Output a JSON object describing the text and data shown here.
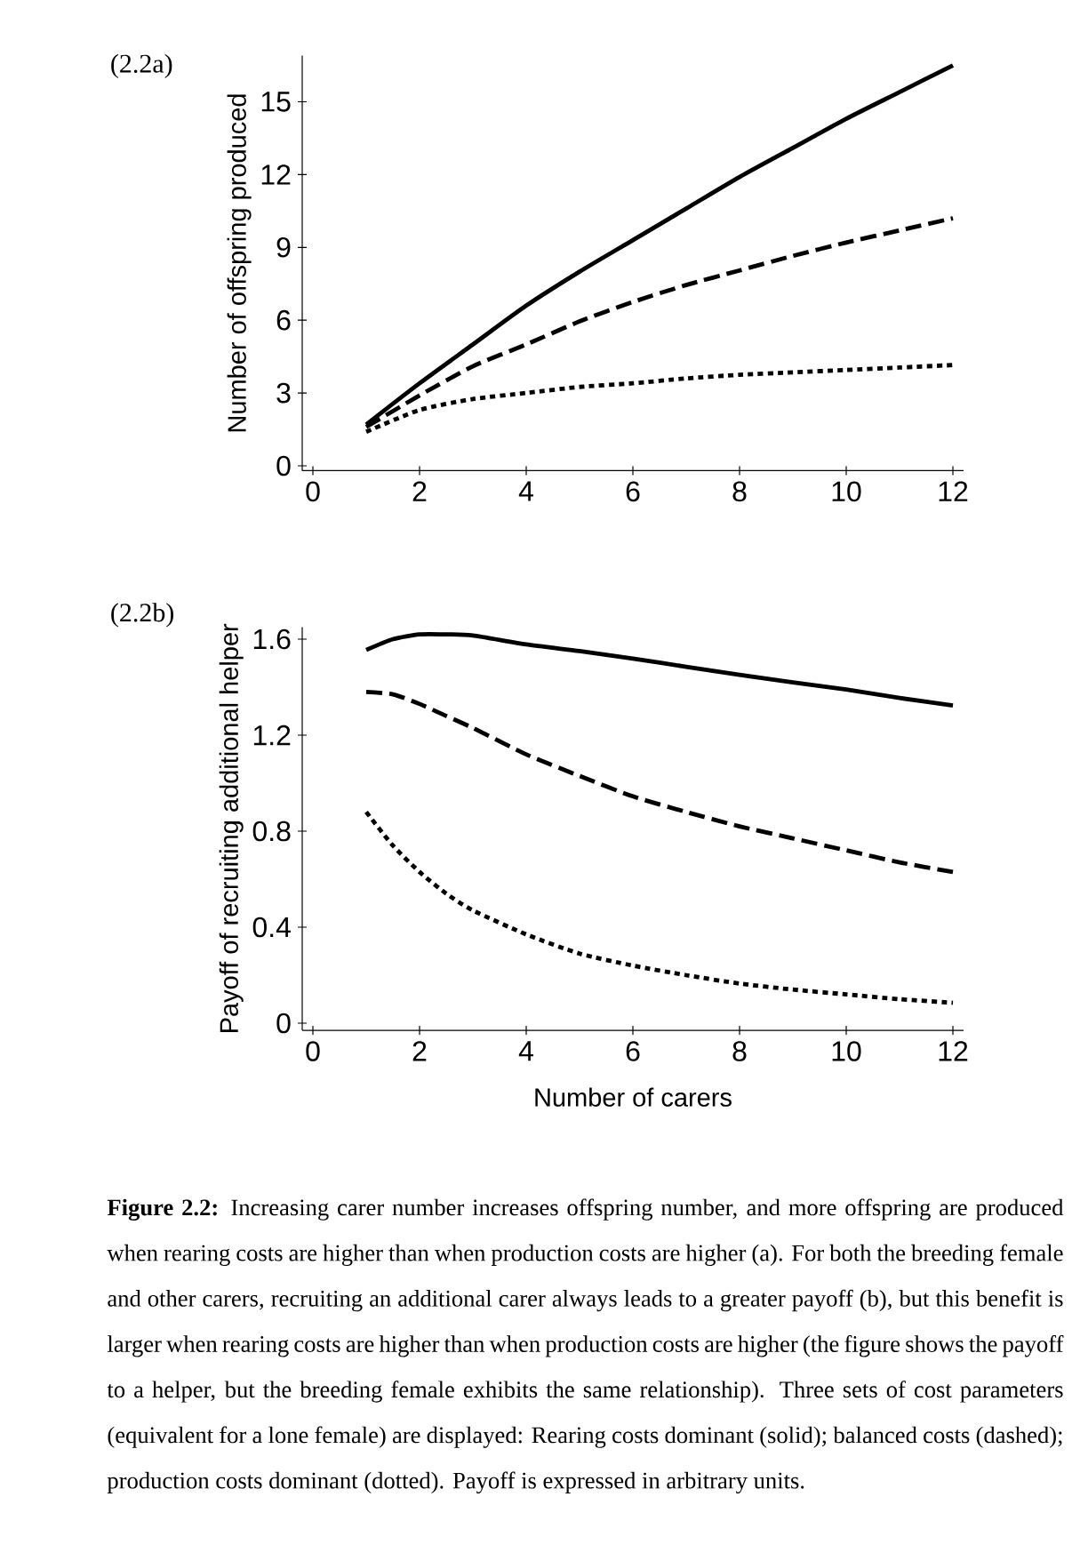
{
  "chart_data": [
    {
      "type": "line",
      "title": "(2.2a)",
      "ylabel": "Number of offspring produced",
      "x": [
        1,
        2,
        3,
        4,
        5,
        6,
        7,
        8,
        9,
        10,
        11,
        12
      ],
      "xlim": [
        -0.2,
        12.2
      ],
      "ylim": [
        -0.2,
        16.9
      ],
      "xticks": [
        0,
        2,
        4,
        6,
        8,
        10,
        12
      ],
      "yticks": [
        0,
        3,
        6,
        9,
        12,
        15
      ],
      "grid": false,
      "marker": "none",
      "series": [
        {
          "color": "#000000",
          "line_style": "solid",
          "values": [
            1.7,
            3.4,
            5.0,
            6.6,
            8.0,
            9.3,
            10.6,
            11.9,
            13.1,
            14.3,
            15.4,
            16.5
          ]
        },
        {
          "color": "#000000",
          "line_style": "dashed",
          "values": [
            1.6,
            2.9,
            4.1,
            5.0,
            5.95,
            6.75,
            7.45,
            8.05,
            8.65,
            9.2,
            9.7,
            10.2
          ]
        },
        {
          "color": "#000000",
          "line_style": "dotted",
          "values": [
            1.4,
            2.3,
            2.75,
            3.0,
            3.25,
            3.4,
            3.6,
            3.75,
            3.85,
            3.95,
            4.05,
            4.15
          ]
        }
      ]
    },
    {
      "type": "line",
      "title": "(2.2b)",
      "xlabel": "Number of carers",
      "ylabel": "Payoff of recruiting additional helper",
      "x": [
        1,
        1.5,
        2,
        2.5,
        3,
        4,
        5,
        6,
        7,
        8,
        9,
        10,
        11,
        12
      ],
      "xlim": [
        -0.2,
        12.2
      ],
      "ylim": [
        -0.03,
        1.65
      ],
      "xticks": [
        0,
        2,
        4,
        6,
        8,
        10,
        12
      ],
      "yticks": [
        0,
        0.4,
        0.8,
        1.2,
        1.6
      ],
      "grid": false,
      "marker": "none",
      "series": [
        {
          "color": "#000000",
          "line_style": "solid",
          "values": [
            1.555,
            1.6,
            1.62,
            1.62,
            1.615,
            1.578,
            1.55,
            1.519,
            1.485,
            1.451,
            1.42,
            1.39,
            1.355,
            1.324
          ]
        },
        {
          "color": "#000000",
          "line_style": "dashed",
          "values": [
            1.38,
            1.37,
            1.33,
            1.28,
            1.23,
            1.12,
            1.03,
            0.945,
            0.88,
            0.82,
            0.77,
            0.72,
            0.67,
            0.63
          ]
        },
        {
          "color": "#000000",
          "line_style": "dotted",
          "values": [
            0.88,
            0.74,
            0.63,
            0.54,
            0.47,
            0.37,
            0.29,
            0.24,
            0.2,
            0.165,
            0.14,
            0.12,
            0.1,
            0.085
          ]
        }
      ],
      "annotations": [
        "**Figure 2.2:** Increasing carer number increases offspring number, and more offspring are produced when rearing costs are higher than when production costs are higher (a). For both the breeding female and other carers, recruiting an additional carer always leads to a greater payoff (b), but this benefit is larger when rearing costs are higher than when production costs are higher (the figure shows the payoff to a helper, but the breeding female exhibits the same relationship). Three sets of cost parameters (equivalent for a lone female) are displayed: Rearing costs dominant (solid); balanced costs (dashed); production costs dominant (dotted). Payoff is expressed in arbitrary units."
      ]
    }
  ]
}
